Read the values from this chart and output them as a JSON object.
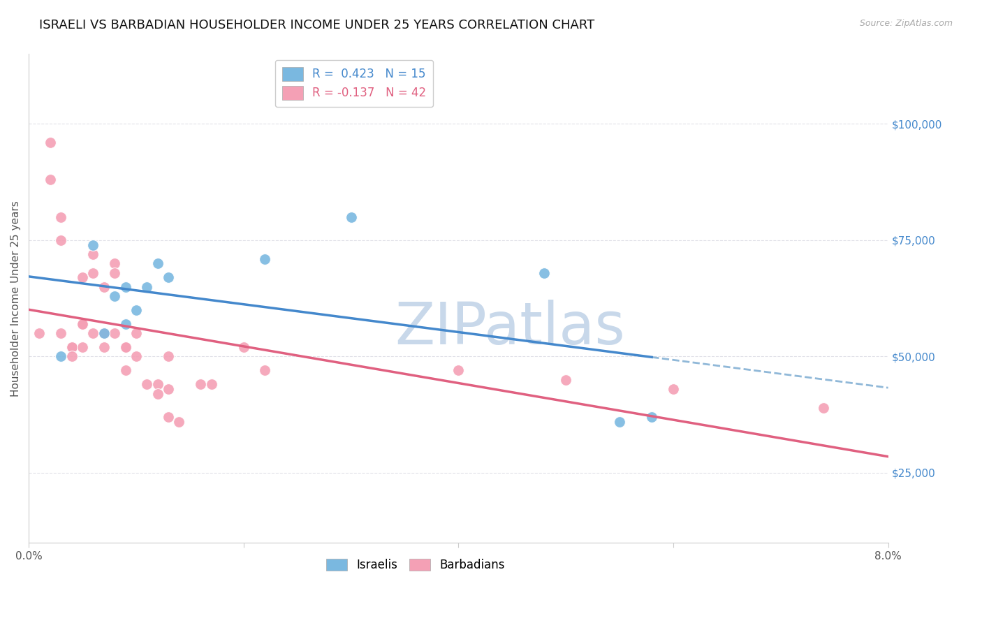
{
  "title": "ISRAELI VS BARBADIAN HOUSEHOLDER INCOME UNDER 25 YEARS CORRELATION CHART",
  "source": "Source: ZipAtlas.com",
  "ylabel": "Householder Income Under 25 years",
  "ytick_labels": [
    "$25,000",
    "$50,000",
    "$75,000",
    "$100,000"
  ],
  "ytick_values": [
    25000,
    50000,
    75000,
    100000
  ],
  "xlim": [
    0.0,
    0.08
  ],
  "ylim": [
    10000,
    115000
  ],
  "legend_israeli": "R =  0.423   N = 15",
  "legend_barbadian": "R = -0.137   N = 42",
  "israeli_color": "#7ab8e0",
  "barbadian_color": "#f4a0b5",
  "israeli_line_color": "#4488cc",
  "barbadian_line_color": "#e06080",
  "dashed_line_color": "#90b8d8",
  "watermark": "ZIPatlas",
  "watermark_color": "#c8d8ea",
  "israelis_x": [
    0.003,
    0.006,
    0.007,
    0.008,
    0.009,
    0.009,
    0.01,
    0.011,
    0.012,
    0.013,
    0.022,
    0.03,
    0.048,
    0.055,
    0.058
  ],
  "israelis_y": [
    50000,
    74000,
    55000,
    63000,
    57000,
    65000,
    60000,
    65000,
    70000,
    67000,
    71000,
    80000,
    68000,
    36000,
    37000
  ],
  "barbadians_x": [
    0.001,
    0.002,
    0.002,
    0.003,
    0.003,
    0.003,
    0.004,
    0.004,
    0.004,
    0.005,
    0.005,
    0.005,
    0.005,
    0.006,
    0.006,
    0.006,
    0.007,
    0.007,
    0.007,
    0.008,
    0.008,
    0.008,
    0.009,
    0.009,
    0.009,
    0.01,
    0.01,
    0.011,
    0.012,
    0.012,
    0.013,
    0.013,
    0.013,
    0.014,
    0.016,
    0.017,
    0.02,
    0.022,
    0.04,
    0.05,
    0.06,
    0.074
  ],
  "barbadians_y": [
    55000,
    96000,
    88000,
    80000,
    75000,
    55000,
    52000,
    52000,
    50000,
    67000,
    57000,
    57000,
    52000,
    72000,
    68000,
    55000,
    65000,
    55000,
    52000,
    70000,
    68000,
    55000,
    52000,
    52000,
    47000,
    55000,
    50000,
    44000,
    44000,
    42000,
    43000,
    50000,
    37000,
    36000,
    44000,
    44000,
    52000,
    47000,
    47000,
    45000,
    43000,
    39000
  ],
  "background_color": "#ffffff",
  "plot_bg_color": "#ffffff",
  "grid_color": "#e0e0e8",
  "title_fontsize": 13,
  "axis_label_fontsize": 11,
  "tick_fontsize": 11,
  "legend_fontsize": 12,
  "watermark_fontsize": 60
}
